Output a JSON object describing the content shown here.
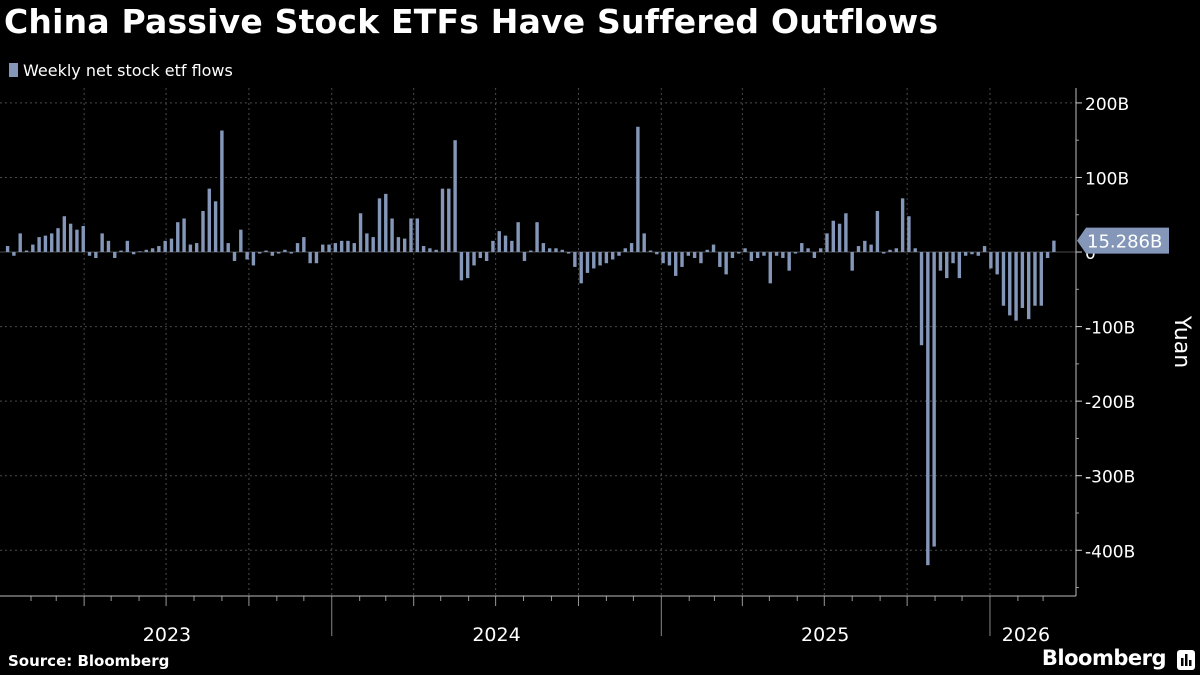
{
  "title": "China Passive Stock ETFs Have Suffered Outflows",
  "source": "Source: Bloomberg",
  "brand": "Bloomberg",
  "colors": {
    "bar": "#8497b9",
    "background": "#000000",
    "grid": "#4a4a4a",
    "text": "#ffffff",
    "callout": "#8497b9"
  },
  "chart_data": {
    "type": "bar",
    "series": [
      {
        "name": "Weekly net stock etf flows",
        "x": [
          "2023-01-06",
          "2023-01-13",
          "2023-01-20",
          "2023-01-27",
          "2023-02-03",
          "2023-02-10",
          "2023-02-17",
          "2023-02-24",
          "2023-03-03",
          "2023-03-10",
          "2023-03-17",
          "2023-03-24",
          "2023-03-31",
          "2023-04-07",
          "2023-04-14",
          "2023-04-21",
          "2023-04-28",
          "2023-05-05",
          "2023-05-12",
          "2023-05-19",
          "2023-05-26",
          "2023-06-02",
          "2023-06-09",
          "2023-06-16",
          "2023-06-23",
          "2023-06-30",
          "2023-07-07",
          "2023-07-14",
          "2023-07-21",
          "2023-07-28",
          "2023-08-04",
          "2023-08-11",
          "2023-08-18",
          "2023-08-25",
          "2023-09-01",
          "2023-09-08",
          "2023-09-15",
          "2023-09-22",
          "2023-09-29",
          "2023-10-06",
          "2023-10-13",
          "2023-10-20",
          "2023-10-27",
          "2023-11-03",
          "2023-11-10",
          "2023-11-17",
          "2023-11-24",
          "2023-12-01",
          "2023-12-08",
          "2023-12-15",
          "2023-12-22",
          "2023-12-29",
          "2024-01-05",
          "2024-01-12",
          "2024-01-19",
          "2024-01-26",
          "2024-02-02",
          "2024-02-09",
          "2024-02-16",
          "2024-02-23",
          "2024-03-01",
          "2024-03-08",
          "2024-03-15",
          "2024-03-22",
          "2024-03-29",
          "2024-04-05",
          "2024-04-12",
          "2024-04-19",
          "2024-04-26",
          "2024-05-03",
          "2024-05-10",
          "2024-05-17",
          "2024-05-24",
          "2024-05-31",
          "2024-06-07",
          "2024-06-14",
          "2024-06-21",
          "2024-06-28",
          "2024-07-05",
          "2024-07-12",
          "2024-07-19",
          "2024-07-26",
          "2024-08-02",
          "2024-08-09",
          "2024-08-16",
          "2024-08-23",
          "2024-08-30",
          "2024-09-06",
          "2024-09-13",
          "2024-09-20",
          "2024-09-27",
          "2024-10-04",
          "2024-10-11",
          "2024-10-18",
          "2024-10-25",
          "2024-11-01",
          "2024-11-08",
          "2024-11-15",
          "2024-11-22",
          "2024-11-29",
          "2024-12-06",
          "2024-12-13",
          "2024-12-20",
          "2024-12-27",
          "2025-01-03",
          "2025-01-10",
          "2025-01-17",
          "2025-01-24",
          "2025-01-31",
          "2025-02-07",
          "2025-02-14",
          "2025-02-21",
          "2025-02-28",
          "2025-03-07",
          "2025-03-14",
          "2025-03-21",
          "2025-03-28",
          "2025-04-04",
          "2025-04-11",
          "2025-04-18",
          "2025-04-25",
          "2025-05-02",
          "2025-05-09",
          "2025-05-16",
          "2025-05-23",
          "2025-05-30",
          "2025-06-06",
          "2025-06-13",
          "2025-06-20",
          "2025-06-27",
          "2025-07-04",
          "2025-07-11",
          "2025-07-18",
          "2025-07-25",
          "2025-08-01",
          "2025-08-08",
          "2025-08-15",
          "2025-08-22",
          "2025-08-29",
          "2025-09-05",
          "2025-09-12",
          "2025-09-19",
          "2025-09-26",
          "2025-10-03",
          "2025-10-10",
          "2025-10-17",
          "2025-10-24",
          "2025-10-31",
          "2025-11-07",
          "2025-11-14",
          "2025-11-21",
          "2025-11-28",
          "2025-12-05",
          "2025-12-12",
          "2025-12-19",
          "2025-12-26",
          "2026-01-02",
          "2026-01-09",
          "2026-01-16",
          "2026-01-23",
          "2026-01-30",
          "2026-02-06",
          "2026-02-13",
          "2026-02-20",
          "2026-02-27",
          "2026-03-06",
          "2026-03-13"
        ],
        "values": [
          8,
          -5,
          25,
          2,
          10,
          20,
          22,
          25,
          32,
          48,
          38,
          30,
          35,
          -5,
          -8,
          25,
          15,
          -8,
          2,
          15,
          -3,
          1,
          3,
          5,
          8,
          15,
          18,
          40,
          45,
          10,
          12,
          55,
          85,
          68,
          163,
          12,
          -12,
          30,
          -10,
          -18,
          -2,
          2,
          -5,
          -2,
          3,
          -2,
          12,
          20,
          -15,
          -15,
          10,
          10,
          12,
          15,
          15,
          12,
          52,
          25,
          20,
          72,
          78,
          45,
          20,
          18,
          45,
          45,
          8,
          5,
          3,
          85,
          85,
          150,
          -38,
          -35,
          -18,
          -8,
          -12,
          15,
          28,
          22,
          15,
          40,
          -12,
          2,
          40,
          12,
          5,
          5,
          3,
          -2,
          -20,
          -42,
          -28,
          -22,
          -18,
          -15,
          -10,
          -5,
          5,
          12,
          168,
          25,
          2,
          -3,
          -15,
          -18,
          -32,
          -20,
          -5,
          -8,
          -15,
          3,
          10,
          -20,
          -30,
          -8,
          -2,
          5,
          -12,
          -8,
          -5,
          -42,
          -5,
          -8,
          -25,
          -2,
          12,
          5,
          -8,
          5,
          25,
          42,
          38,
          52,
          -25,
          8,
          15,
          10,
          55,
          -2,
          3,
          5,
          72,
          48,
          5,
          -125,
          -420,
          -395,
          -25,
          -35,
          -15,
          -35,
          -5,
          -3,
          -5,
          8,
          -22,
          -30,
          -72,
          -85,
          -92,
          -75,
          -90,
          -72,
          -72,
          -8,
          15.286
        ]
      }
    ],
    "last_value_label": "15.286B",
    "ylabel": "Yuan",
    "ylim": [
      -460,
      220
    ],
    "yticks": [
      200,
      100,
      0,
      -100,
      -200,
      -300,
      -400
    ],
    "ytick_labels": [
      "200B",
      "100B",
      "0",
      "-100B",
      "-200B",
      "-300B",
      "-400B"
    ],
    "xlim": [
      "2023-01-02",
      "2026-03-22"
    ],
    "year_labels": [
      {
        "label": "2023",
        "center": "2023-07-02"
      },
      {
        "label": "2024",
        "center": "2024-07-02"
      },
      {
        "label": "2025",
        "center": "2025-07-02"
      },
      {
        "label": "2026",
        "center": "2026-02-10"
      }
    ],
    "grid": true,
    "legend": "top-left"
  }
}
